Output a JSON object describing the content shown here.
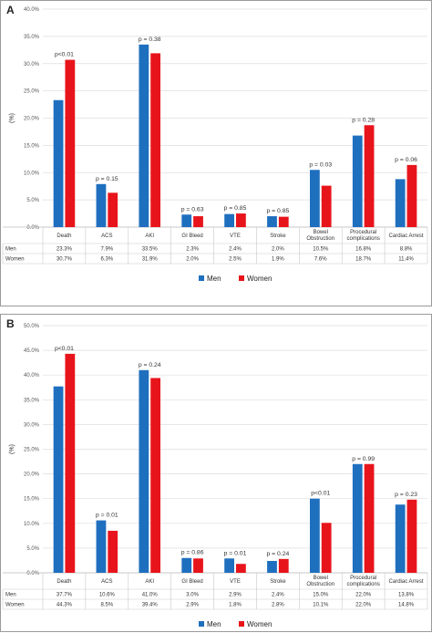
{
  "chart_data": [
    {
      "panel_label": "A",
      "type": "bar",
      "ylabel": "(%)",
      "ylim": [
        0,
        40
      ],
      "y_ticks": [
        "0.0%",
        "5.0%",
        "10.0%",
        "15.0%",
        "20.0%",
        "25.0%",
        "30.0%",
        "35.0%",
        "40.0%"
      ],
      "grid": true,
      "legend_position": "bottom",
      "categories": [
        "Death",
        "ACS",
        "AKI",
        "GI Bleed",
        "VTE",
        "Stroke",
        "Bowel Obstruction",
        "Procedural complications",
        "Cardiac Arrest"
      ],
      "category_lines": [
        [
          "Death"
        ],
        [
          "ACS"
        ],
        [
          "AKI"
        ],
        [
          "GI Bleed"
        ],
        [
          "VTE"
        ],
        [
          "Stroke"
        ],
        [
          "Bowel",
          "Obstruction"
        ],
        [
          "Procedural",
          "complications"
        ],
        [
          "Cardiac Arrest"
        ]
      ],
      "p_values": [
        "p<0.01",
        "p = 0.15",
        "p = 0.38",
        "p = 0.63",
        "p = 0.85",
        "p = 0.85",
        "p = 0.03",
        "p = 0.28",
        "p = 0.06"
      ],
      "series": [
        {
          "name": "Men",
          "color": "#1f6fbf",
          "values": [
            23.3,
            7.9,
            33.5,
            2.3,
            2.4,
            2.0,
            10.5,
            16.8,
            8.8
          ],
          "labels": [
            "23.3%",
            "7.9%",
            "33.5%",
            "2.3%",
            "2.4%",
            "2.0%",
            "10.5%",
            "16.8%",
            "8.8%"
          ]
        },
        {
          "name": "Women",
          "color": "#e8141b",
          "values": [
            30.7,
            6.3,
            31.9,
            2.0,
            2.5,
            1.9,
            7.6,
            18.7,
            11.4
          ],
          "labels": [
            "30.7%",
            "6.3%",
            "31.9%",
            "2.0%",
            "2.5%",
            "1.9%",
            "7.6%",
            "18.7%",
            "11.4%"
          ]
        }
      ]
    },
    {
      "panel_label": "B",
      "type": "bar",
      "ylabel": "(%)",
      "ylim": [
        0,
        50
      ],
      "y_ticks": [
        "0.0%",
        "5.0%",
        "10.0%",
        "15.0%",
        "20.0%",
        "25.0%",
        "30.0%",
        "35.0%",
        "40.0%",
        "45.0%",
        "50.0%"
      ],
      "grid": true,
      "legend_position": "bottom",
      "categories": [
        "Death",
        "ACS",
        "AKI",
        "GI Bleed",
        "VTE",
        "Stroke",
        "Bowel Obstruction",
        "Procedural complications",
        "Cardiac Arrest"
      ],
      "category_lines": [
        [
          "Death"
        ],
        [
          "ACS"
        ],
        [
          "AKI"
        ],
        [
          "GI Bleed"
        ],
        [
          "VTE"
        ],
        [
          "Stroke"
        ],
        [
          "Bowel",
          "Obstruction"
        ],
        [
          "Procedural",
          "complications"
        ],
        [
          "Cardiac Arrest"
        ]
      ],
      "p_values": [
        "p<0.01",
        "p = 0.01",
        "p = 0.24",
        "p = 0.86",
        "p = 0.01",
        "p = 0.24",
        "p<0.01",
        "p = 0.99",
        "p = 0.23"
      ],
      "series": [
        {
          "name": "Men",
          "color": "#1f6fbf",
          "values": [
            37.7,
            10.6,
            41.0,
            3.0,
            2.9,
            2.4,
            15.0,
            22.0,
            13.8
          ],
          "labels": [
            "37.7%",
            "10.6%",
            "41.0%",
            "3.0%",
            "2.9%",
            "2.4%",
            "15.0%",
            "22.0%",
            "13.8%"
          ]
        },
        {
          "name": "Women",
          "color": "#e8141b",
          "values": [
            44.3,
            8.5,
            39.4,
            2.9,
            1.8,
            2.8,
            10.1,
            22.0,
            14.8
          ],
          "labels": [
            "44.3%",
            "8.5%",
            "39.4%",
            "2.9%",
            "1.8%",
            "2.8%",
            "10.1%",
            "22.0%",
            "14.8%"
          ]
        }
      ]
    }
  ]
}
